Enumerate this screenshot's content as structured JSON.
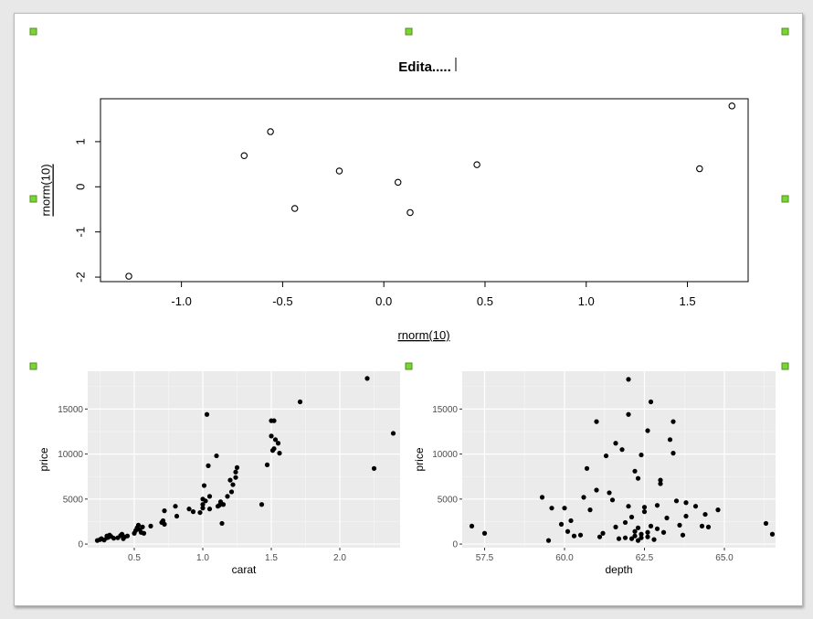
{
  "title": "Edita.....",
  "colors": {
    "panel_bg": "#ebebeb",
    "grid_major": "#ffffff",
    "point": "#000000",
    "selection_handle": "#7ad433"
  },
  "chart_data": [
    {
      "type": "scatter",
      "style": "base-graphics",
      "xlabel": "rnorm(10)",
      "ylabel": "rnorm(10)",
      "xlim": [
        -1.4,
        1.8
      ],
      "ylim": [
        -2.1,
        1.95
      ],
      "xticks": [
        -1.0,
        -0.5,
        0.0,
        0.5,
        1.0,
        1.5
      ],
      "xtick_labels": [
        "-1.0",
        "-0.5",
        "0.0",
        "0.5",
        "1.0",
        "1.5"
      ],
      "yticks": [
        -2,
        -1,
        0,
        1
      ],
      "ytick_labels": [
        "-2",
        "-1",
        "0",
        "1"
      ],
      "grid": false,
      "points": [
        {
          "x": -1.26,
          "y": -1.98
        },
        {
          "x": -0.69,
          "y": 0.69
        },
        {
          "x": -0.56,
          "y": 1.22
        },
        {
          "x": -0.44,
          "y": -0.48
        },
        {
          "x": -0.22,
          "y": 0.35
        },
        {
          "x": 0.07,
          "y": 0.1
        },
        {
          "x": 0.13,
          "y": -0.57
        },
        {
          "x": 0.46,
          "y": 0.49
        },
        {
          "x": 1.56,
          "y": 0.4
        },
        {
          "x": 1.72,
          "y": 1.79
        }
      ]
    },
    {
      "type": "scatter",
      "style": "ggplot2",
      "xlabel": "carat",
      "ylabel": "price",
      "xlim": [
        0.16,
        2.44
      ],
      "ylim": [
        -400,
        19200
      ],
      "xticks": [
        0.5,
        1.0,
        1.5,
        2.0
      ],
      "xtick_labels": [
        "0.5",
        "1.0",
        "1.5",
        "2.0"
      ],
      "yticks": [
        0,
        5000,
        10000,
        15000
      ],
      "ytick_labels": [
        "0",
        "5000",
        "10000",
        "15000"
      ],
      "grid": true,
      "points": [
        [
          0.23,
          400
        ],
        [
          0.25,
          500
        ],
        [
          0.26,
          600
        ],
        [
          0.28,
          450
        ],
        [
          0.3,
          700
        ],
        [
          0.3,
          900
        ],
        [
          0.31,
          750
        ],
        [
          0.32,
          1000
        ],
        [
          0.33,
          850
        ],
        [
          0.35,
          650
        ],
        [
          0.38,
          700
        ],
        [
          0.4,
          950
        ],
        [
          0.41,
          1100
        ],
        [
          0.42,
          600
        ],
        [
          0.43,
          800
        ],
        [
          0.45,
          900
        ],
        [
          0.5,
          1200
        ],
        [
          0.51,
          1500
        ],
        [
          0.52,
          1800
        ],
        [
          0.53,
          2100
        ],
        [
          0.54,
          1600
        ],
        [
          0.55,
          1300
        ],
        [
          0.56,
          1900
        ],
        [
          0.57,
          1200
        ],
        [
          0.62,
          2000
        ],
        [
          0.7,
          2400
        ],
        [
          0.71,
          2600
        ],
        [
          0.72,
          2200
        ],
        [
          0.72,
          3700
        ],
        [
          0.8,
          4200
        ],
        [
          0.81,
          3100
        ],
        [
          0.9,
          3900
        ],
        [
          0.93,
          3600
        ],
        [
          0.98,
          3500
        ],
        [
          1.0,
          4000
        ],
        [
          1.0,
          4400
        ],
        [
          1.0,
          5000
        ],
        [
          1.01,
          6500
        ],
        [
          1.02,
          4800
        ],
        [
          1.03,
          14400
        ],
        [
          1.04,
          8700
        ],
        [
          1.05,
          5300
        ],
        [
          1.05,
          3900
        ],
        [
          1.1,
          9800
        ],
        [
          1.11,
          4200
        ],
        [
          1.12,
          4300
        ],
        [
          1.13,
          4700
        ],
        [
          1.14,
          2300
        ],
        [
          1.15,
          4400
        ],
        [
          1.18,
          5300
        ],
        [
          1.2,
          7100
        ],
        [
          1.21,
          5800
        ],
        [
          1.22,
          6600
        ],
        [
          1.24,
          7400
        ],
        [
          1.24,
          8000
        ],
        [
          1.25,
          8500
        ],
        [
          1.43,
          4400
        ],
        [
          1.47,
          8800
        ],
        [
          1.5,
          13700
        ],
        [
          1.5,
          12000
        ],
        [
          1.51,
          10400
        ],
        [
          1.52,
          10600
        ],
        [
          1.53,
          11600
        ],
        [
          1.55,
          11200
        ],
        [
          1.56,
          10100
        ],
        [
          1.52,
          13700
        ],
        [
          1.71,
          15800
        ],
        [
          2.2,
          18400
        ],
        [
          2.25,
          8400
        ],
        [
          2.39,
          12300
        ]
      ]
    },
    {
      "type": "scatter",
      "style": "ggplot2",
      "xlabel": "depth",
      "ylabel": "price",
      "xlim": [
        56.8,
        66.6
      ],
      "ylim": [
        -400,
        19200
      ],
      "xticks": [
        57.5,
        60.0,
        62.5,
        65.0
      ],
      "xtick_labels": [
        "57.5",
        "60.0",
        "62.5",
        "65.0"
      ],
      "yticks": [
        0,
        5000,
        10000,
        15000
      ],
      "ytick_labels": [
        "0",
        "5000",
        "10000",
        "15000"
      ],
      "grid": true,
      "points": [
        [
          57.1,
          2000
        ],
        [
          57.5,
          1200
        ],
        [
          59.3,
          5200
        ],
        [
          59.5,
          400
        ],
        [
          59.6,
          4000
        ],
        [
          59.9,
          2200
        ],
        [
          60.0,
          4000
        ],
        [
          60.1,
          1400
        ],
        [
          60.2,
          2600
        ],
        [
          60.3,
          900
        ],
        [
          60.5,
          1000
        ],
        [
          60.6,
          5200
        ],
        [
          60.7,
          8400
        ],
        [
          60.8,
          3800
        ],
        [
          61.0,
          13600
        ],
        [
          61.0,
          6000
        ],
        [
          61.1,
          800
        ],
        [
          61.2,
          1200
        ],
        [
          61.3,
          9800
        ],
        [
          61.4,
          5700
        ],
        [
          61.5,
          4900
        ],
        [
          61.6,
          1900
        ],
        [
          61.6,
          11200
        ],
        [
          61.7,
          600
        ],
        [
          61.8,
          10500
        ],
        [
          61.9,
          2400
        ],
        [
          61.9,
          700
        ],
        [
          62.0,
          14400
        ],
        [
          62.0,
          4200
        ],
        [
          62.1,
          3000
        ],
        [
          62.2,
          1400
        ],
        [
          62.2,
          8100
        ],
        [
          62.3,
          7300
        ],
        [
          62.3,
          400
        ],
        [
          62.4,
          9900
        ],
        [
          62.4,
          1100
        ],
        [
          62.5,
          4100
        ],
        [
          62.5,
          3600
        ],
        [
          62.6,
          12600
        ],
        [
          62.6,
          800
        ],
        [
          62.7,
          2000
        ],
        [
          62.7,
          15800
        ],
        [
          62.8,
          500
        ],
        [
          62.9,
          4300
        ],
        [
          63.0,
          7100
        ],
        [
          63.0,
          6700
        ],
        [
          63.1,
          1300
        ],
        [
          63.2,
          2900
        ],
        [
          63.3,
          11600
        ],
        [
          63.4,
          13600
        ],
        [
          63.4,
          10100
        ],
        [
          63.5,
          4800
        ],
        [
          63.6,
          2100
        ],
        [
          63.7,
          1000
        ],
        [
          63.8,
          4600
        ],
        [
          63.8,
          3100
        ],
        [
          64.1,
          4200
        ],
        [
          64.3,
          2000
        ],
        [
          64.4,
          3300
        ],
        [
          64.5,
          1900
        ],
        [
          64.8,
          3800
        ],
        [
          66.3,
          2300
        ],
        [
          66.5,
          1100
        ],
        [
          62.0,
          18300
        ],
        [
          62.2,
          900
        ],
        [
          62.4,
          700
        ],
        [
          62.1,
          600
        ],
        [
          62.3,
          1800
        ],
        [
          62.6,
          1300
        ],
        [
          62.9,
          1700
        ]
      ]
    }
  ]
}
